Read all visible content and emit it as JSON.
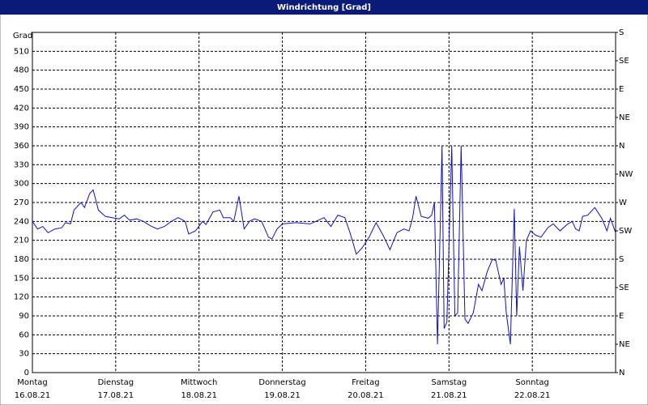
{
  "chart_data": {
    "type": "line",
    "title": "Windrichtung [Grad]",
    "y_axis_label": "Grad",
    "x": [
      0,
      1.5,
      3,
      4.5,
      6.5,
      8.5,
      9.5,
      11,
      12,
      14,
      15,
      16.5,
      17.5,
      19,
      21,
      23,
      25,
      26.5,
      28,
      30,
      32,
      34,
      36,
      38,
      40,
      42,
      44,
      45,
      47,
      49,
      50,
      52,
      54,
      55,
      57,
      58,
      59.5,
      61,
      62.5,
      64,
      66,
      67,
      68,
      69,
      70.5,
      72,
      76,
      80,
      84,
      86,
      88,
      90,
      91.5,
      93.3,
      95,
      97,
      99,
      101,
      103,
      105,
      107,
      108.5,
      109.5,
      110.5,
      112,
      114,
      115,
      115.8,
      116.7,
      117.6,
      118,
      118.6,
      119.4,
      120.8,
      121.7,
      122.5,
      123.5,
      124.6,
      125.5,
      127,
      128.5,
      129.5,
      131,
      132.5,
      133.5,
      135,
      135.8,
      136.5,
      137.7,
      138.8,
      139.5,
      140.3,
      141.3,
      142.3,
      143.5,
      145,
      146.5,
      148.5,
      150,
      152,
      154,
      155.5,
      156.5,
      157.5,
      158.5,
      160,
      162,
      164,
      165.5,
      166.5,
      168
    ],
    "series": [
      {
        "name": "Windrichtung",
        "color": "#1010c8",
        "values": [
          240,
          228,
          232,
          222,
          228,
          230,
          238,
          236,
          258,
          270,
          262,
          284,
          290,
          258,
          248,
          246,
          244,
          250,
          242,
          244,
          240,
          233,
          228,
          232,
          240,
          246,
          240,
          220,
          225,
          240,
          235,
          255,
          258,
          246,
          246,
          240,
          280,
          228,
          240,
          244,
          240,
          228,
          215,
          212,
          228,
          236,
          238,
          236,
          246,
          232,
          250,
          246,
          222,
          188,
          198,
          215,
          238,
          218,
          195,
          222,
          228,
          225,
          245,
          280,
          248,
          245,
          250,
          270,
          45,
          260,
          360,
          70,
          80,
          360,
          90,
          95,
          360,
          85,
          78,
          95,
          140,
          130,
          160,
          180,
          178,
          140,
          150,
          95,
          45,
          260,
          90,
          200,
          130,
          210,
          225,
          218,
          215,
          230,
          236,
          225,
          235,
          240,
          228,
          225,
          248,
          250,
          262,
          245,
          225,
          245,
          222
        ]
      }
    ],
    "xlim": [
      0,
      168
    ],
    "xticks": [
      {
        "value": 0,
        "label": "Montag"
      },
      {
        "value": 24,
        "label": "Dienstag"
      },
      {
        "value": 48,
        "label": "Mittwoch"
      },
      {
        "value": 72,
        "label": "Donnerstag"
      },
      {
        "value": 96,
        "label": "Freitag"
      },
      {
        "value": 120,
        "label": "Samstag"
      },
      {
        "value": 144,
        "label": "Sonntag"
      }
    ],
    "xtick_dates": [
      "16.08.21",
      "17.08.21",
      "18.08.21",
      "19.08.21",
      "20.08.21",
      "21.08.21",
      "22.08.21"
    ],
    "ylim": [
      0,
      540
    ],
    "yticks": [
      0,
      30,
      60,
      90,
      120,
      150,
      180,
      210,
      240,
      270,
      300,
      330,
      360,
      390,
      420,
      450,
      480,
      510
    ],
    "y2lim": [
      0,
      540
    ],
    "y2ticks": [
      {
        "value": 0,
        "label": "N"
      },
      {
        "value": 45,
        "label": "NE"
      },
      {
        "value": 90,
        "label": "E"
      },
      {
        "value": 135,
        "label": "SE"
      },
      {
        "value": 180,
        "label": "S"
      },
      {
        "value": 225,
        "label": "SW"
      },
      {
        "value": 270,
        "label": "W"
      },
      {
        "value": 315,
        "label": "NW"
      },
      {
        "value": 360,
        "label": "N"
      },
      {
        "value": 405,
        "label": "NE"
      },
      {
        "value": 450,
        "label": "E"
      },
      {
        "value": 495,
        "label": "SE"
      },
      {
        "value": 540,
        "label": "S"
      }
    ],
    "grid": true
  }
}
